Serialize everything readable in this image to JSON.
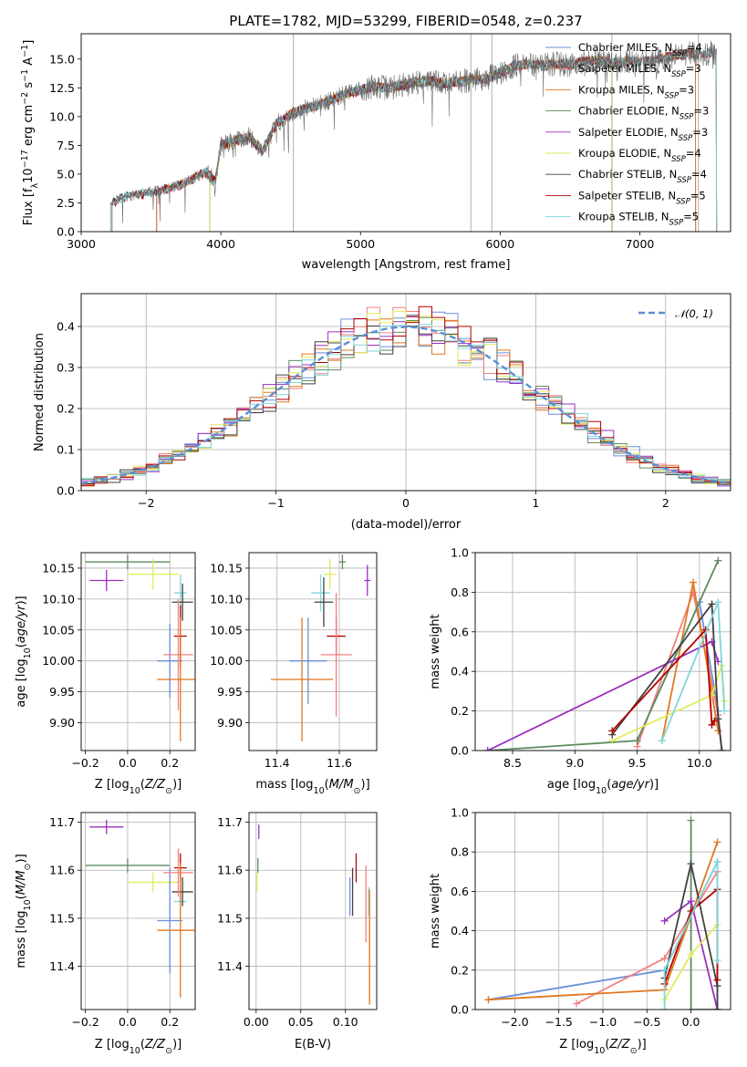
{
  "colors": {
    "Chabrier MILES": "#6a8fdb",
    "Salpeter MILES": "#f57f7f",
    "Kroupa MILES": "#e0781f",
    "Chabrier ELODIE": "#5e8c5e",
    "Salpeter ELODIE": "#9b30c0",
    "Kroupa ELODIE": "#dfec5a",
    "Chabrier STELIB": "#404040",
    "Salpeter STELIB": "#b30000",
    "Kroupa STELIB": "#7fd6dc",
    "gaussian": "#5b8fd6"
  },
  "chart_data": [
    {
      "id": "spectrum",
      "type": "line",
      "title": "PLATE=1782, MJD=53299, FIBERID=0548, z=0.237",
      "xlabel": "wavelength [Angstrom, rest frame]",
      "ylabel_parts": {
        "a": "Flux [f",
        "sub1": "λ",
        "b": "10",
        "sup1": "−17",
        "c": " erg cm",
        "sup2": "−2",
        "d": " s",
        "sup3": "−1",
        "e": " A",
        "sup4": "−1",
        "f": "]"
      },
      "xlim": [
        3000,
        7650
      ],
      "ylim": [
        0,
        17.2
      ],
      "xticks": [
        "3000",
        "4000",
        "5000",
        "6000",
        "7000"
      ],
      "yticks": [
        "0.0",
        "2.5",
        "5.0",
        "7.5",
        "10.0",
        "12.5",
        "15.0"
      ],
      "xtick_values": [
        3000,
        4000,
        5000,
        6000,
        7000
      ],
      "ytick_values": [
        0,
        2.5,
        5,
        7.5,
        10,
        12.5,
        15
      ],
      "continuum": {
        "x": [
          3210,
          3300,
          3400,
          3500,
          3600,
          3700,
          3800,
          3900,
          3960,
          4000,
          4100,
          4200,
          4300,
          4400,
          4500,
          4600,
          4700,
          4800,
          4900,
          5000,
          5100,
          5200,
          5300,
          5400,
          5500,
          5600,
          5700,
          5800,
          5900,
          6000,
          6100,
          6200,
          6300,
          6400,
          6500,
          6600,
          6700,
          6800,
          6900,
          7000,
          7100,
          7200,
          7300,
          7400,
          7500
        ],
        "y": [
          2.5,
          3.0,
          3.2,
          3.4,
          3.7,
          4.0,
          4.6,
          5.2,
          4.3,
          7.5,
          7.9,
          8.3,
          7.0,
          9.4,
          10.2,
          10.7,
          11.0,
          11.5,
          12.0,
          12.3,
          12.6,
          12.5,
          12.7,
          13.0,
          13.1,
          12.9,
          13.0,
          13.2,
          13.3,
          13.8,
          14.4,
          14.6,
          14.4,
          14.6,
          14.5,
          14.8,
          14.9,
          14.6,
          14.8,
          14.8,
          14.9,
          15.2,
          15.4,
          15.5,
          15.5
        ]
      },
      "model_starts": {
        "Chabrier MILES": 3540,
        "Salpeter MILES": 3540,
        "Kroupa MILES": 3540,
        "Chabrier ELODIE": 3920,
        "Salpeter ELODIE": 3920,
        "Kroupa ELODIE": 3920,
        "Chabrier STELIB": 3220,
        "Salpeter STELIB": 3220,
        "Kroupa STELIB": 3220
      },
      "model_ends": {
        "Chabrier MILES": 7400,
        "Salpeter MILES": 7400,
        "Kroupa MILES": 7400,
        "Chabrier ELODIE": 6800,
        "Salpeter ELODIE": 6800,
        "Kroupa ELODIE": 6800,
        "Chabrier STELIB": 7550,
        "Salpeter STELIB": 7550,
        "Kroupa STELIB": 7550
      },
      "vlines": [
        4520,
        5790,
        5940,
        6800,
        7420
      ],
      "legend": [
        {
          "label": "Chabrier MILES, N",
          "sub": "SSP",
          "tail": "=4",
          "key": "Chabrier MILES"
        },
        {
          "label": "Salpeter MILES, N",
          "sub": "SSP",
          "tail": "=3",
          "key": "Salpeter MILES"
        },
        {
          "label": "Kroupa MILES, N",
          "sub": "SSP",
          "tail": "=3",
          "key": "Kroupa MILES"
        },
        {
          "label": "Chabrier ELODIE, N",
          "sub": "SSP",
          "tail": "=3",
          "key": "Chabrier ELODIE"
        },
        {
          "label": "Salpeter ELODIE, N",
          "sub": "SSP",
          "tail": "=3",
          "key": "Salpeter ELODIE"
        },
        {
          "label": "Kroupa ELODIE, N",
          "sub": "SSP",
          "tail": "=4",
          "key": "Kroupa ELODIE"
        },
        {
          "label": "Chabrier STELIB, N",
          "sub": "SSP",
          "tail": "=4",
          "key": "Chabrier STELIB"
        },
        {
          "label": "Salpeter STELIB, N",
          "sub": "SSP",
          "tail": "=5",
          "key": "Salpeter STELIB"
        },
        {
          "label": "Kroupa STELIB, N",
          "sub": "SSP",
          "tail": "=5",
          "key": "Kroupa STELIB"
        }
      ],
      "legend_location": "upper right"
    },
    {
      "id": "residuals",
      "type": "histogram",
      "xlabel": "(data-model)/error",
      "ylabel": "Normed distribution",
      "xlim": [
        -2.5,
        2.5
      ],
      "ylim": [
        0,
        0.48
      ],
      "xticks": [
        "−2",
        "−1",
        "0",
        "1",
        "2"
      ],
      "yticks": [
        "0.0",
        "0.1",
        "0.2",
        "0.3",
        "0.4"
      ],
      "xtick_values": [
        -2,
        -1,
        0,
        1,
        2
      ],
      "ytick_values": [
        0,
        0.1,
        0.2,
        0.3,
        0.4
      ],
      "bin_width": 0.1,
      "bin_start": -2.5,
      "legend": [
        {
          "label": "𝒩(0, 1)",
          "style": "dashed",
          "key": "gaussian"
        }
      ],
      "legend_location": "upper right",
      "grid": true
    },
    {
      "id": "age_vs_Z",
      "type": "errorbar",
      "xlabel_parts": {
        "a": "Z [log",
        "sub": "10",
        "b": "(",
        "it": "Z/Z",
        "sub2": "⊙",
        "c": ")]"
      },
      "ylabel_parts": {
        "a": "age  [log",
        "sub": "10",
        "b": "(",
        "it": "age/yr",
        "c": ")]"
      },
      "xlim": [
        -0.22,
        0.32
      ],
      "ylim": [
        9.855,
        10.175
      ],
      "xticks": [
        "−0.2",
        "0.0",
        "0.2"
      ],
      "xtick_values": [
        -0.2,
        0,
        0.2
      ],
      "yticks": [
        "9.90",
        "9.95",
        "10.00",
        "10.05",
        "10.10",
        "10.15"
      ],
      "ytick_values": [
        9.9,
        9.95,
        10.0,
        10.05,
        10.1,
        10.15
      ],
      "points": [
        {
          "key": "Salpeter ELODIE",
          "x": -0.1,
          "y": 10.13,
          "xerr": 0.08,
          "yerr": 0.017
        },
        {
          "key": "Chabrier ELODIE",
          "x": 0.0,
          "y": 10.16,
          "xerr": 0.2,
          "yerr": 0.012
        },
        {
          "key": "Kroupa ELODIE",
          "x": 0.12,
          "y": 10.14,
          "xerr": 0.12,
          "yerr": 0.025
        },
        {
          "key": "Kroupa STELIB",
          "x": 0.25,
          "y": 10.11,
          "xerr": 0.03,
          "yerr": 0.03
        },
        {
          "key": "Chabrier STELIB",
          "x": 0.26,
          "y": 10.095,
          "xerr": 0.05,
          "yerr": 0.03
        },
        {
          "key": "Salpeter STELIB",
          "x": 0.25,
          "y": 10.04,
          "xerr": 0.03,
          "yerr": 0.05
        },
        {
          "key": "Chabrier MILES",
          "x": 0.2,
          "y": 10.0,
          "xerr": 0.06,
          "yerr": 0.06
        },
        {
          "key": "Salpeter MILES",
          "x": 0.24,
          "y": 10.01,
          "xerr": 0.07,
          "yerr": 0.09
        },
        {
          "key": "Kroupa MILES",
          "x": 0.25,
          "y": 9.97,
          "xerr": 0.11,
          "yerr": 0.1
        }
      ]
    },
    {
      "id": "age_vs_mass",
      "type": "errorbar",
      "xlabel_parts": {
        "a": "mass [log",
        "sub": "10",
        "b": "(",
        "it": "M/M",
        "sub2": "⊙",
        "c": ")]"
      },
      "xlim": [
        11.31,
        11.72
      ],
      "ylim": [
        9.855,
        10.175
      ],
      "xticks": [
        "11.4",
        "11.6"
      ],
      "xtick_values": [
        11.4,
        11.6
      ],
      "yticks": [
        "9.90",
        "9.95",
        "10.00",
        "10.05",
        "10.10",
        "10.15"
      ],
      "ytick_values": [
        9.9,
        9.95,
        10.0,
        10.05,
        10.1,
        10.15
      ],
      "points": [
        {
          "key": "Salpeter ELODIE",
          "x": 11.69,
          "y": 10.13,
          "xerr": 0.01,
          "yerr": 0.025
        },
        {
          "key": "Chabrier ELODIE",
          "x": 11.61,
          "y": 10.16,
          "xerr": 0.01,
          "yerr": 0.012
        },
        {
          "key": "Kroupa ELODIE",
          "x": 11.57,
          "y": 10.14,
          "xerr": 0.02,
          "yerr": 0.025
        },
        {
          "key": "Kroupa STELIB",
          "x": 11.54,
          "y": 10.11,
          "xerr": 0.03,
          "yerr": 0.03
        },
        {
          "key": "Chabrier STELIB",
          "x": 11.55,
          "y": 10.095,
          "xerr": 0.03,
          "yerr": 0.04
        },
        {
          "key": "Salpeter STELIB",
          "x": 11.59,
          "y": 10.04,
          "xerr": 0.03,
          "yerr": 0.03
        },
        {
          "key": "Chabrier MILES",
          "x": 11.5,
          "y": 10.0,
          "xerr": 0.06,
          "yerr": 0.07
        },
        {
          "key": "Salpeter MILES",
          "x": 11.59,
          "y": 10.01,
          "xerr": 0.05,
          "yerr": 0.1
        },
        {
          "key": "Kroupa MILES",
          "x": 11.48,
          "y": 9.97,
          "xerr": 0.1,
          "yerr": 0.1
        }
      ]
    },
    {
      "id": "weight_vs_age",
      "type": "line",
      "xlabel_parts": {
        "a": "age  [log",
        "sub": "10",
        "b": "(",
        "it": "age/yr",
        "c": ")]"
      },
      "ylabel": "mass weight",
      "xlim": [
        8.2,
        10.25
      ],
      "ylim": [
        0,
        1
      ],
      "xticks": [
        "8.5",
        "9.0",
        "9.5",
        "10.0"
      ],
      "xtick_values": [
        8.5,
        9.0,
        9.5,
        10.0
      ],
      "yticks": [
        "0.0",
        "0.2",
        "0.4",
        "0.6",
        "0.8",
        "1.0"
      ],
      "ytick_values": [
        0,
        0.2,
        0.4,
        0.6,
        0.8,
        1.0
      ],
      "series": [
        {
          "key": "Chabrier MILES",
          "x": [
            9.5,
            10.0,
            10.15,
            10.18
          ],
          "y": [
            0.05,
            0.75,
            0.2,
            0.0
          ]
        },
        {
          "key": "Salpeter MILES",
          "x": [
            9.5,
            9.95,
            10.15,
            10.18
          ],
          "y": [
            0.02,
            0.8,
            0.18,
            0.0
          ]
        },
        {
          "key": "Kroupa MILES",
          "x": [
            9.7,
            9.95,
            10.15
          ],
          "y": [
            0.05,
            0.85,
            0.1
          ]
        },
        {
          "key": "Chabrier ELODIE",
          "x": [
            8.3,
            9.5,
            10.15
          ],
          "y": [
            0.0,
            0.05,
            0.96
          ]
        },
        {
          "key": "Salpeter ELODIE",
          "x": [
            8.3,
            10.1,
            10.15
          ],
          "y": [
            0.0,
            0.55,
            0.45
          ]
        },
        {
          "key": "Kroupa ELODIE",
          "x": [
            9.3,
            10.1,
            10.18,
            10.2
          ],
          "y": [
            0.05,
            0.28,
            0.43,
            0.25
          ]
        },
        {
          "key": "Chabrier STELIB",
          "x": [
            9.3,
            10.1,
            10.15,
            10.18
          ],
          "y": [
            0.08,
            0.74,
            0.16,
            0.0
          ]
        },
        {
          "key": "Salpeter STELIB",
          "x": [
            9.3,
            10.05,
            10.1,
            10.12
          ],
          "y": [
            0.1,
            0.61,
            0.13,
            0.15
          ]
        },
        {
          "key": "Kroupa STELIB",
          "x": [
            9.7,
            10.15,
            10.2
          ],
          "y": [
            0.05,
            0.75,
            0.2
          ]
        }
      ]
    },
    {
      "id": "mass_vs_Z",
      "type": "errorbar",
      "xlabel_parts": {
        "a": "Z [log",
        "sub": "10",
        "b": "(",
        "it": "Z/Z",
        "sub2": "⊙",
        "c": ")]"
      },
      "ylabel_parts": {
        "a": "mass [log",
        "sub": "10",
        "b": "(",
        "it": "M/M",
        "sub2": "⊙",
        "c": ")]"
      },
      "xlim": [
        -0.22,
        0.32
      ],
      "ylim": [
        11.31,
        11.72
      ],
      "xticks": [
        "−0.2",
        "0.0",
        "0.2"
      ],
      "xtick_values": [
        -0.2,
        0,
        0.2
      ],
      "yticks": [
        "11.4",
        "11.5",
        "11.6",
        "11.7"
      ],
      "ytick_values": [
        11.4,
        11.5,
        11.6,
        11.7
      ],
      "points": [
        {
          "key": "Salpeter ELODIE",
          "x": -0.1,
          "y": 11.69,
          "xerr": 0.08,
          "yerr": 0.015
        },
        {
          "key": "Chabrier ELODIE",
          "x": 0.0,
          "y": 11.61,
          "xerr": 0.2,
          "yerr": 0.015
        },
        {
          "key": "Kroupa ELODIE",
          "x": 0.12,
          "y": 11.575,
          "xerr": 0.12,
          "yerr": 0.02
        },
        {
          "key": "Kroupa STELIB",
          "x": 0.25,
          "y": 11.535,
          "xerr": 0.03,
          "yerr": 0.03
        },
        {
          "key": "Chabrier STELIB",
          "x": 0.26,
          "y": 11.555,
          "xerr": 0.05,
          "yerr": 0.03
        },
        {
          "key": "Salpeter STELIB",
          "x": 0.25,
          "y": 11.605,
          "xerr": 0.03,
          "yerr": 0.03
        },
        {
          "key": "Chabrier MILES",
          "x": 0.2,
          "y": 11.495,
          "xerr": 0.06,
          "yerr": 0.11
        },
        {
          "key": "Salpeter MILES",
          "x": 0.24,
          "y": 11.595,
          "xerr": 0.07,
          "yerr": 0.05
        },
        {
          "key": "Kroupa MILES",
          "x": 0.25,
          "y": 11.475,
          "xerr": 0.11,
          "yerr": 0.14
        }
      ]
    },
    {
      "id": "mass_vs_ebv",
      "type": "errorbar",
      "xlabel": "E(B-V)",
      "xlim": [
        -0.008,
        0.135
      ],
      "ylim": [
        11.31,
        11.72
      ],
      "xticks": [
        "0.00",
        "0.05",
        "0.10"
      ],
      "xtick_values": [
        0,
        0.05,
        0.1
      ],
      "yticks": [
        "11.4",
        "11.5",
        "11.6",
        "11.7"
      ],
      "ytick_values": [
        11.4,
        11.5,
        11.6,
        11.7
      ],
      "points": [
        {
          "key": "Salpeter ELODIE",
          "x": 0.003,
          "y": 11.68,
          "xerr": 0.0,
          "yerr": 0.015
        },
        {
          "key": "Chabrier ELODIE",
          "x": 0.002,
          "y": 11.61,
          "xerr": 0.0,
          "yerr": 0.015
        },
        {
          "key": "Kroupa ELODIE",
          "x": 0.001,
          "y": 11.575,
          "xerr": 0.0,
          "yerr": 0.02
        },
        {
          "key": "Kroupa STELIB",
          "x": 0.126,
          "y": 11.535,
          "xerr": 0.0,
          "yerr": 0.03
        },
        {
          "key": "Chabrier STELIB",
          "x": 0.108,
          "y": 11.555,
          "xerr": 0.0,
          "yerr": 0.05
        },
        {
          "key": "Salpeter STELIB",
          "x": 0.112,
          "y": 11.605,
          "xerr": 0.0,
          "yerr": 0.03
        },
        {
          "key": "Chabrier MILES",
          "x": 0.105,
          "y": 11.545,
          "xerr": 0.0,
          "yerr": 0.04
        },
        {
          "key": "Salpeter MILES",
          "x": 0.123,
          "y": 11.53,
          "xerr": 0.0,
          "yerr": 0.08
        },
        {
          "key": "Kroupa MILES",
          "x": 0.127,
          "y": 11.44,
          "xerr": 0.0,
          "yerr": 0.12
        }
      ]
    },
    {
      "id": "weight_vs_Z",
      "type": "line",
      "xlabel_parts": {
        "a": "Z [log",
        "sub": "10",
        "b": "(",
        "it": "Z/Z",
        "sub2": "⊙",
        "c": ")]"
      },
      "ylabel": "mass weight",
      "xlim": [
        -2.45,
        0.45
      ],
      "ylim": [
        0,
        1
      ],
      "xticks": [
        "−2.0",
        "−1.5",
        "−1.0",
        "−0.5",
        "0.0"
      ],
      "xtick_values": [
        -2.0,
        -1.5,
        -1.0,
        -0.5,
        0.0
      ],
      "yticks": [
        "0.0",
        "0.2",
        "0.4",
        "0.6",
        "0.8",
        "1.0"
      ],
      "ytick_values": [
        0,
        0.2,
        0.4,
        0.6,
        0.8,
        1.0
      ],
      "series": [
        {
          "key": "Chabrier MILES",
          "x": [
            -2.3,
            -0.3,
            0.3,
            0.3
          ],
          "y": [
            0.05,
            0.2,
            0.75,
            0.0
          ]
        },
        {
          "key": "Salpeter MILES",
          "x": [
            -1.3,
            -0.3,
            0.3
          ],
          "y": [
            0.03,
            0.26,
            0.7
          ]
        },
        {
          "key": "Kroupa MILES",
          "x": [
            -2.3,
            -0.3,
            0.3
          ],
          "y": [
            0.05,
            0.1,
            0.85
          ]
        },
        {
          "key": "Chabrier ELODIE",
          "x": [
            0.0,
            0.0,
            0.3
          ],
          "y": [
            0.96,
            0.0,
            0.0
          ]
        },
        {
          "key": "Salpeter ELODIE",
          "x": [
            -0.3,
            0.0,
            0.3
          ],
          "y": [
            0.45,
            0.55,
            0.0
          ]
        },
        {
          "key": "Kroupa ELODIE",
          "x": [
            -0.3,
            0.0,
            0.3
          ],
          "y": [
            0.05,
            0.28,
            0.43
          ]
        },
        {
          "key": "Chabrier STELIB",
          "x": [
            -0.3,
            0.0,
            0.3,
            0.3
          ],
          "y": [
            0.16,
            0.74,
            0.12,
            0.0
          ]
        },
        {
          "key": "Salpeter STELIB",
          "x": [
            -0.3,
            0.0,
            0.3,
            0.3
          ],
          "y": [
            0.13,
            0.5,
            0.61,
            0.15
          ]
        },
        {
          "key": "Kroupa STELIB",
          "x": [
            -0.3,
            -0.3,
            0.3,
            0.3
          ],
          "y": [
            0.0,
            0.2,
            0.75,
            0.25
          ]
        }
      ]
    }
  ]
}
